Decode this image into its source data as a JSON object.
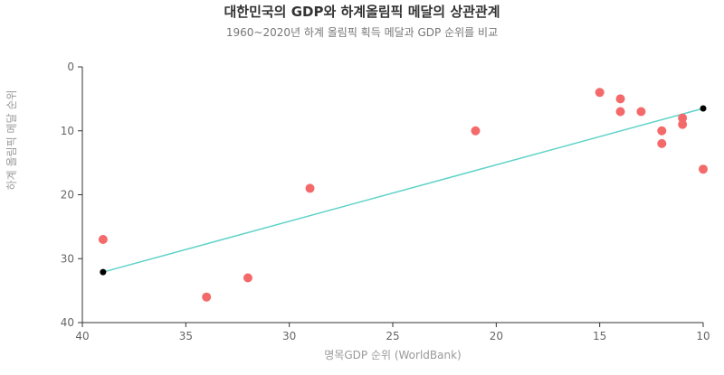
{
  "chart_data": {
    "type": "scatter",
    "title": "대한민국의 GDP와 하계올림픽 메달의 상관관계",
    "subtitle": "1960~2020년 하계 올림픽 획득 메달과 GDP 순위를 비교",
    "xlabel": "명목GDP 순위 (WorldBank)",
    "ylabel": "하계 올림픽 메달 순위",
    "xlim": [
      40,
      10
    ],
    "ylim": [
      0,
      40
    ],
    "x_reversed": true,
    "y_reversed": true,
    "x_ticks": [
      40,
      35,
      30,
      25,
      20,
      15,
      10
    ],
    "y_ticks": [
      0,
      10,
      20,
      30,
      40
    ],
    "grid": false,
    "colors": {
      "points": "#f46a6a",
      "trendline": "#5fd3c8",
      "trend_endpoints": "#000000"
    },
    "points": [
      {
        "x": 39,
        "y": 27
      },
      {
        "x": 34,
        "y": 36
      },
      {
        "x": 32,
        "y": 33
      },
      {
        "x": 29,
        "y": 19
      },
      {
        "x": 21,
        "y": 10
      },
      {
        "x": 15,
        "y": 4
      },
      {
        "x": 14,
        "y": 5
      },
      {
        "x": 14,
        "y": 7
      },
      {
        "x": 13,
        "y": 7
      },
      {
        "x": 12,
        "y": 10
      },
      {
        "x": 12,
        "y": 12
      },
      {
        "x": 11,
        "y": 8
      },
      {
        "x": 11,
        "y": 9
      },
      {
        "x": 10,
        "y": 16
      }
    ],
    "trendline": [
      {
        "x": 39,
        "y": 32.1
      },
      {
        "x": 10,
        "y": 6.5
      }
    ]
  }
}
